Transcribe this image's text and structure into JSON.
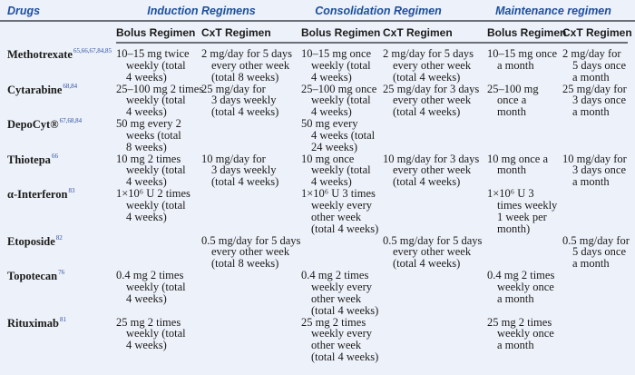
{
  "header": {
    "drugs": "Drugs",
    "groups": [
      "Induction Regimens",
      "Consolidation Regimen",
      "Maintenance regimen"
    ],
    "subheaders": [
      "Bolus Regimen",
      "CxT Regimen",
      "Bolus Regimen",
      "CxT Regimen",
      "Bolus Regimen",
      "CxT Regimen"
    ]
  },
  "rows": [
    {
      "drug": "Methotrexate",
      "refs": "65,66,67,84,85",
      "cells": [
        "10–15 mg twice\nweekly (total\n4 weeks)",
        "2 mg/day for 5 days\nevery other week\n(total 8 weeks)",
        "10–15 mg once\nweekly (total\n4 weeks)",
        "2 mg/day for 5 days\nevery other week\n(total 4 weeks)",
        "10–15 mg once\na month",
        "2 mg/day for\n5 days once\na month"
      ]
    },
    {
      "drug": "Cytarabine",
      "refs": "68,84",
      "cells": [
        "25–100 mg 2 times\nweekly (total\n4 weeks)",
        "25 mg/day for\n3 days weekly\n(total 4 weeks)",
        "25–100 mg once\nweekly (total\n4 weeks)",
        "25 mg/day for 3 days\nevery other week\n(total 4 weeks)",
        "25–100 mg\nonce a\nmonth",
        "25 mg/day for\n3 days once\na month"
      ]
    },
    {
      "drug": "DepoCyt®",
      "refs": "67,68,84",
      "cells": [
        "50 mg every 2\nweeks (total\n8 weeks)",
        "",
        "50 mg every\n4 weeks (total\n24 weeks)",
        "",
        "",
        ""
      ]
    },
    {
      "drug": "Thiotepa",
      "refs": "66",
      "cells": [
        "10 mg 2 times\nweekly (total\n4 weeks)",
        "10 mg/day for\n3 days weekly\n(total 4 weeks)",
        "10 mg once\nweekly (total\n4 weeks)",
        "10 mg/day for 3 days\nevery other week\n(total 4 weeks)",
        "10 mg once a\nmonth",
        "10 mg/day for\n3 days once\na month"
      ]
    },
    {
      "drug": "α-Interferon",
      "refs": "83",
      "cells": [
        "1×10⁶ U 2 times\nweekly (total\n4 weeks)",
        "",
        "1×10⁶ U 3 times\nweekly every\nother week\n(total 4 weeks)",
        "",
        "1×10⁶ U 3\ntimes weekly\n1 week per\nmonth)",
        ""
      ]
    },
    {
      "drug": "Etoposide",
      "refs": "82",
      "cells": [
        "",
        "0.5 mg/day for 5 days\nevery other week\n(total 8 weeks)",
        "",
        "0.5 mg/day for 5 days\nevery other week\n(total 4 weeks)",
        "",
        "0.5 mg/day for\n5 days once\na month"
      ]
    },
    {
      "drug": "Topotecan",
      "refs": "76",
      "cells": [
        "0.4 mg 2 times\nweekly (total\n4 weeks)",
        "",
        "0.4 mg 2 times\nweekly every\nother week\n(total 4 weeks)",
        "",
        "0.4 mg 2 times\nweekly once\na month",
        ""
      ]
    },
    {
      "drug": "Rituximab",
      "refs": "81",
      "cells": [
        "25 mg 2 times\nweekly (total\n4 weeks)",
        "",
        "25 mg 2 times\nweekly every\nother week\n(total 4 weeks)",
        "",
        "25 mg 2 times\nweekly once\na month",
        ""
      ]
    }
  ]
}
